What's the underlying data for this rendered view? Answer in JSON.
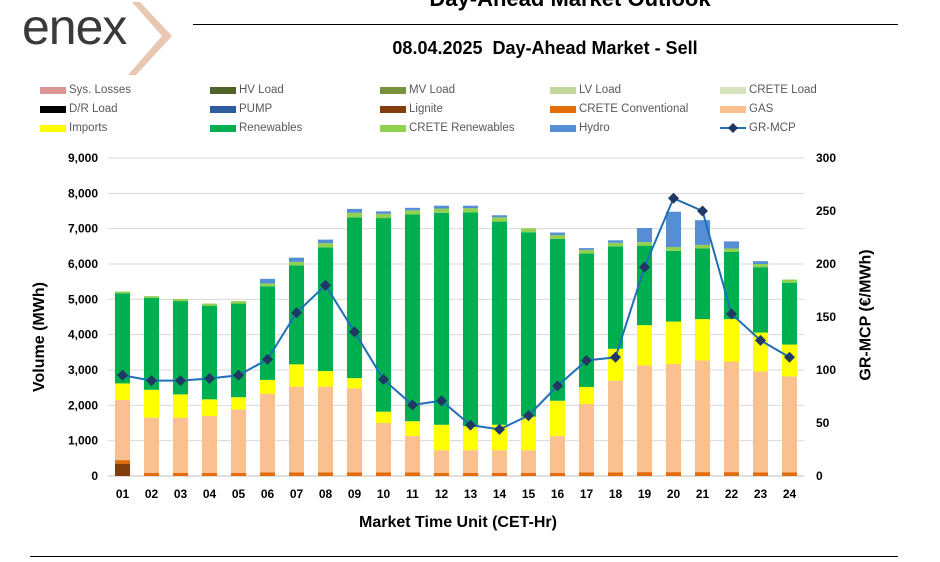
{
  "header": {
    "brand": "enex",
    "title": "Day-Ahead Market Outlook"
  },
  "chart_data": {
    "type": "bar",
    "subtitle": "08.04.2025  Day-Ahead Market - Sell",
    "xlabel": "Market Time Unit (CET-Hr)",
    "ylabel": "Volume (MWh)",
    "y2label": "GR-MCP (€/MWh)",
    "ylim": [
      0,
      9000
    ],
    "y2lim": [
      0,
      300
    ],
    "yticks": [
      "0",
      "1,000",
      "2,000",
      "3,000",
      "4,000",
      "5,000",
      "6,000",
      "7,000",
      "8,000",
      "9,000"
    ],
    "y2ticks": [
      "0",
      "50",
      "100",
      "150",
      "200",
      "250",
      "300"
    ],
    "categories": [
      "01",
      "02",
      "03",
      "04",
      "05",
      "06",
      "07",
      "08",
      "09",
      "10",
      "11",
      "12",
      "13",
      "14",
      "15",
      "16",
      "17",
      "18",
      "19",
      "20",
      "21",
      "22",
      "23",
      "24"
    ],
    "series": [
      {
        "name": "Sys. Losses",
        "color": "#d99694",
        "values": [
          0,
          0,
          0,
          0,
          0,
          0,
          0,
          0,
          0,
          0,
          0,
          0,
          0,
          0,
          0,
          0,
          0,
          0,
          0,
          0,
          0,
          0,
          0,
          0
        ]
      },
      {
        "name": "HV Load",
        "color": "#4f6228",
        "values": [
          0,
          0,
          0,
          0,
          0,
          0,
          0,
          0,
          0,
          0,
          0,
          0,
          0,
          0,
          0,
          0,
          0,
          0,
          0,
          0,
          0,
          0,
          0,
          0
        ]
      },
      {
        "name": "MV Load",
        "color": "#76923c",
        "values": [
          0,
          0,
          0,
          0,
          0,
          0,
          0,
          0,
          0,
          0,
          0,
          0,
          0,
          0,
          0,
          0,
          0,
          0,
          0,
          0,
          0,
          0,
          0,
          0
        ]
      },
      {
        "name": "LV Load",
        "color": "#c3d69b",
        "values": [
          0,
          0,
          0,
          0,
          0,
          0,
          0,
          0,
          0,
          0,
          0,
          0,
          0,
          0,
          0,
          0,
          0,
          0,
          0,
          0,
          0,
          0,
          0,
          0
        ]
      },
      {
        "name": "CRETE Load",
        "color": "#d7e4bd",
        "values": [
          0,
          0,
          0,
          0,
          0,
          0,
          0,
          0,
          0,
          0,
          0,
          0,
          0,
          0,
          0,
          0,
          0,
          0,
          0,
          0,
          0,
          0,
          0,
          0
        ]
      },
      {
        "name": "D/R Load",
        "color": "#000000",
        "values": [
          0,
          0,
          0,
          0,
          0,
          0,
          0,
          0,
          0,
          0,
          0,
          0,
          0,
          0,
          0,
          0,
          0,
          0,
          0,
          0,
          0,
          0,
          0,
          0
        ]
      },
      {
        "name": "PUMP",
        "color": "#2e5d9e",
        "values": [
          0,
          0,
          0,
          0,
          0,
          0,
          0,
          0,
          0,
          0,
          0,
          0,
          0,
          0,
          0,
          0,
          0,
          0,
          0,
          0,
          0,
          0,
          0,
          0
        ]
      },
      {
        "name": "Lignite",
        "color": "#843c0c",
        "values": [
          350,
          0,
          0,
          0,
          0,
          0,
          0,
          0,
          0,
          0,
          0,
          0,
          0,
          0,
          0,
          0,
          0,
          0,
          0,
          0,
          0,
          0,
          0,
          0
        ]
      },
      {
        "name": "CRETE Conventional",
        "color": "#e46c0a",
        "values": [
          100,
          90,
          90,
          90,
          90,
          100,
          100,
          100,
          100,
          100,
          100,
          90,
          90,
          90,
          90,
          90,
          100,
          100,
          110,
          110,
          110,
          110,
          100,
          100
        ]
      },
      {
        "name": "GAS",
        "color": "#fac090",
        "values": [
          1700,
          1560,
          1560,
          1610,
          1790,
          2230,
          2430,
          2430,
          2380,
          1400,
          1030,
          640,
          640,
          640,
          640,
          1040,
          1940,
          2600,
          3020,
          3060,
          3160,
          3130,
          2860,
          2720
        ]
      },
      {
        "name": "Imports",
        "color": "#ffff00",
        "values": [
          470,
          790,
          660,
          470,
          350,
          390,
          630,
          440,
          290,
          320,
          420,
          720,
          680,
          720,
          950,
          1000,
          480,
          900,
          1140,
          1200,
          1170,
          1200,
          1100,
          900
        ]
      },
      {
        "name": "Renewables",
        "color": "#00b050",
        "values": [
          2550,
          2600,
          2640,
          2650,
          2650,
          2650,
          2800,
          3500,
          4550,
          5480,
          5850,
          6000,
          6050,
          5750,
          5220,
          4580,
          3780,
          2900,
          2250,
          2000,
          2000,
          1900,
          1850,
          1750
        ]
      },
      {
        "name": "CRETE Renewables",
        "color": "#92d050",
        "values": [
          50,
          50,
          60,
          60,
          70,
          80,
          100,
          120,
          130,
          120,
          120,
          120,
          120,
          120,
          110,
          110,
          100,
          100,
          100,
          110,
          100,
          100,
          90,
          90
        ]
      },
      {
        "name": "Hydro",
        "color": "#558ed5",
        "values": [
          0,
          0,
          0,
          0,
          0,
          130,
          120,
          100,
          110,
          70,
          70,
          80,
          70,
          60,
          0,
          70,
          50,
          70,
          400,
          1000,
          700,
          200,
          80,
          0
        ]
      }
    ],
    "line": {
      "name": "GR-MCP",
      "color": "#1f6fb5",
      "marker_color": "#1f3864",
      "values": [
        95,
        90,
        90,
        92,
        95,
        110,
        154,
        180,
        136,
        91,
        67,
        71,
        48,
        44,
        57,
        85,
        109,
        112,
        197,
        262,
        250,
        153,
        128,
        112
      ]
    },
    "legend_order": [
      "Sys. Losses",
      "HV Load",
      "MV Load",
      "LV Load",
      "CRETE Load",
      "D/R Load",
      "PUMP",
      "Lignite",
      "CRETE Conventional",
      "GAS",
      "Imports",
      "Renewables",
      "CRETE Renewables",
      "Hydro",
      "GR-MCP"
    ],
    "legend_position": "top"
  }
}
